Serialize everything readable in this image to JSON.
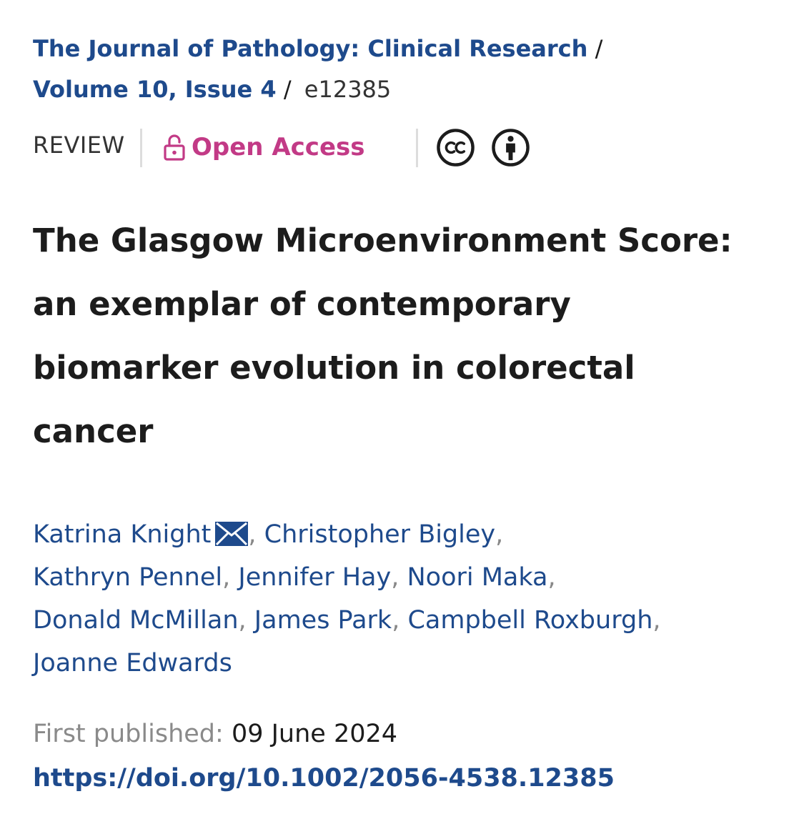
{
  "breadcrumb": {
    "journal": "The Journal of Pathology: Clinical Research",
    "volume_issue": "Volume 10, Issue 4",
    "separator": "/",
    "article_number": "e12385"
  },
  "meta": {
    "article_type": "REVIEW",
    "access_label": "Open Access",
    "access_icon": "unlocked-padlock-icon",
    "license_icons": [
      "creative-commons-icon",
      "attribution-person-icon"
    ]
  },
  "article": {
    "title_lines": [
      "The Glasgow Microenvironment Score:",
      "an exemplar of contemporary",
      "biomarker evolution in colorectal",
      "cancer"
    ]
  },
  "authors": {
    "names": [
      "Katrina Knight",
      "Christopher Bigley",
      "Kathryn Pennel",
      "Jennifer Hay",
      "Noori Maka",
      "Donald McMillan",
      "James Park",
      "Campbell Roxburgh",
      "Joanne Edwards"
    ],
    "separator": ",",
    "corresponding_icon": "envelope-icon"
  },
  "publication": {
    "first_published_label": "First published:",
    "first_published_date": "09 June 2024",
    "doi_url": "https://doi.org/10.1002/2056-4538.12385"
  },
  "colors": {
    "link_blue": "#1e4a8c",
    "open_access_magenta": "#c23a86",
    "text_dark": "#1c1c1c",
    "text_muted": "#8a8a8a"
  }
}
